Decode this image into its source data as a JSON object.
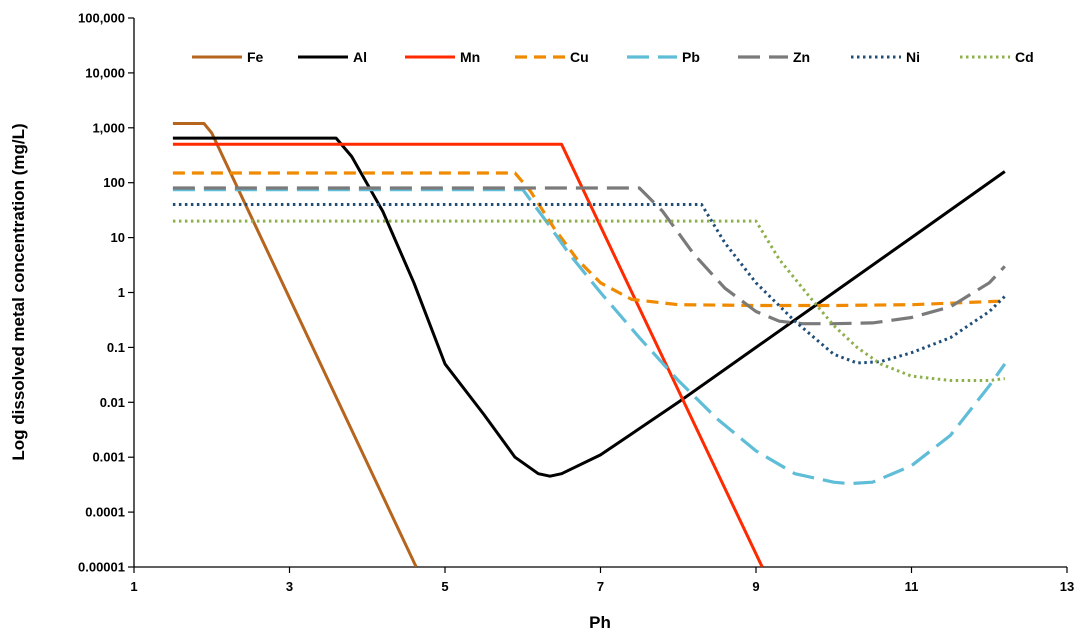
{
  "chart_data": {
    "type": "line",
    "title": "",
    "xlabel": "Ph",
    "ylabel": "Log dissolved metal concentration (mg/L)",
    "x_range": [
      1,
      13
    ],
    "x_ticks": [
      1,
      3,
      5,
      7,
      9,
      11,
      13
    ],
    "x_tick_labels": [
      "1",
      "3",
      "5",
      "7",
      "9",
      "11",
      "13"
    ],
    "y_scale": "log",
    "y_range": [
      1e-05,
      100000
    ],
    "y_ticks": [
      1e-05,
      0.0001,
      0.001,
      0.01,
      0.1,
      1,
      10,
      100,
      1000,
      10000,
      100000
    ],
    "y_tick_labels": [
      "0.00001",
      "0.0001",
      "0.001",
      "0.01",
      "0.1",
      "1",
      "10",
      "100",
      "1,000",
      "10,000",
      "100,000"
    ],
    "grid": false,
    "legend_position": "top",
    "series": [
      {
        "name": "Fe",
        "color": "#B5651D",
        "style": "solid",
        "x": [
          1.5,
          1.9,
          2.0,
          4.63
        ],
        "y": [
          1200,
          1200,
          800,
          1e-05
        ]
      },
      {
        "name": "Al",
        "color": "#000000",
        "style": "solid",
        "x": [
          1.5,
          3.6,
          3.8,
          4.2,
          4.6,
          5.0,
          5.5,
          5.9,
          6.2,
          6.35,
          6.5,
          7.0,
          8.0,
          9.0,
          10.0,
          11.0,
          12.2
        ],
        "y": [
          650,
          650,
          300,
          30,
          1.5,
          0.05,
          0.006,
          0.001,
          0.0005,
          0.00045,
          0.0005,
          0.0011,
          0.01,
          0.1,
          1,
          10,
          160
        ]
      },
      {
        "name": "Mn",
        "color": "#FF2A00",
        "style": "solid",
        "x": [
          1.5,
          6.5,
          9.08
        ],
        "y": [
          500,
          500,
          1e-05
        ]
      },
      {
        "name": "Cu",
        "color": "#F08A00",
        "style": "dash",
        "x": [
          1.5,
          5.9,
          6.1,
          6.4,
          6.7,
          7.0,
          7.4,
          8.0,
          9.0,
          10.0,
          11.0,
          12.2
        ],
        "y": [
          150,
          150,
          70,
          15,
          4,
          1.5,
          0.75,
          0.6,
          0.58,
          0.58,
          0.6,
          0.7
        ]
      },
      {
        "name": "Pb",
        "color": "#5FBDD8",
        "style": "longdash",
        "x": [
          1.5,
          6.0,
          6.3,
          6.6,
          7.0,
          7.5,
          8.0,
          8.5,
          9.0,
          9.5,
          10.0,
          10.2,
          10.5,
          11.0,
          11.5,
          12.0,
          12.2
        ],
        "y": [
          75,
          75,
          20,
          5,
          1,
          0.15,
          0.025,
          0.005,
          0.0013,
          0.0005,
          0.00035,
          0.00033,
          0.00035,
          0.0007,
          0.0025,
          0.02,
          0.05
        ]
      },
      {
        "name": "Zn",
        "color": "#7A7A7A",
        "style": "longdash",
        "x": [
          1.5,
          7.5,
          7.8,
          8.2,
          8.6,
          9.0,
          9.3,
          9.6,
          10.0,
          10.5,
          11.0,
          11.5,
          12.0,
          12.2
        ],
        "y": [
          80,
          80,
          30,
          5,
          1.2,
          0.45,
          0.3,
          0.27,
          0.27,
          0.28,
          0.35,
          0.55,
          1.5,
          3
        ]
      },
      {
        "name": "Ni",
        "color": "#1F4E79",
        "style": "dot",
        "x": [
          1.5,
          8.3,
          8.6,
          9.0,
          9.5,
          10.0,
          10.3,
          10.6,
          11.0,
          11.5,
          12.0,
          12.2
        ],
        "y": [
          40,
          40,
          8,
          1.5,
          0.3,
          0.075,
          0.052,
          0.055,
          0.08,
          0.15,
          0.45,
          0.85
        ]
      },
      {
        "name": "Cd",
        "color": "#8DB04B",
        "style": "dot",
        "x": [
          1.5,
          9.0,
          9.3,
          9.7,
          10.0,
          10.3,
          10.6,
          11.0,
          11.5,
          12.0,
          12.2
        ],
        "y": [
          20,
          20,
          4,
          0.8,
          0.25,
          0.1,
          0.05,
          0.03,
          0.025,
          0.025,
          0.027
        ]
      }
    ]
  }
}
